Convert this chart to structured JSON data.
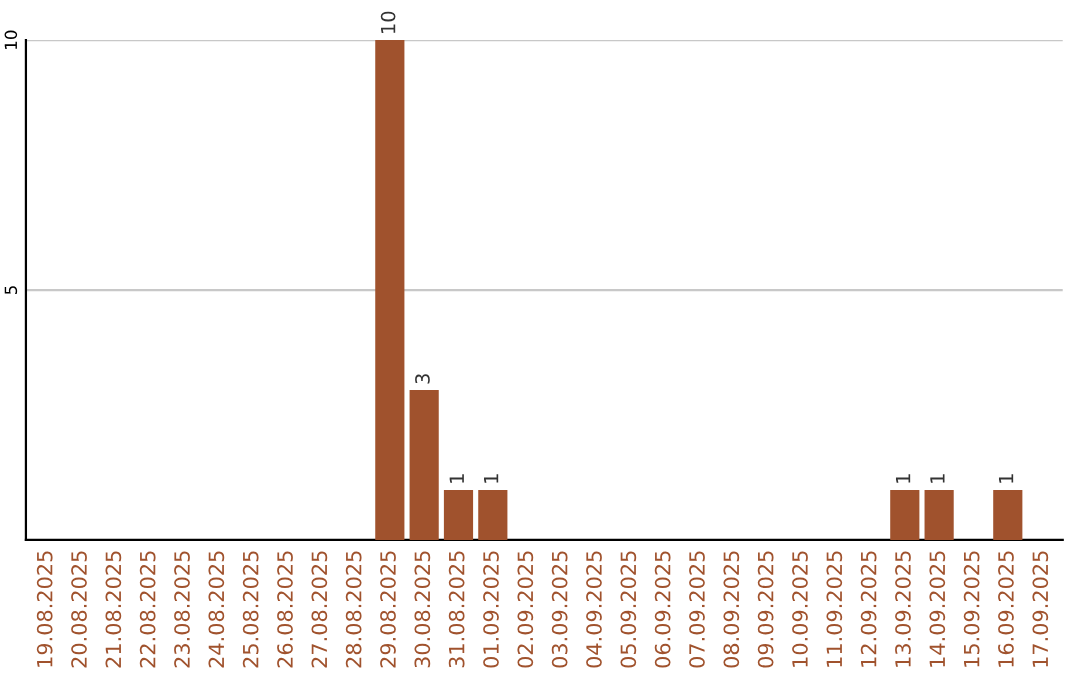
{
  "chart_data": {
    "type": "bar",
    "categories": [
      "19.08.2025",
      "20.08.2025",
      "21.08.2025",
      "22.08.2025",
      "23.08.2025",
      "24.08.2025",
      "25.08.2025",
      "26.08.2025",
      "27.08.2025",
      "28.08.2025",
      "29.08.2025",
      "30.08.2025",
      "31.08.2025",
      "01.09.2025",
      "02.09.2025",
      "03.09.2025",
      "04.09.2025",
      "05.09.2025",
      "06.09.2025",
      "07.09.2025",
      "08.09.2025",
      "09.09.2025",
      "10.09.2025",
      "11.09.2025",
      "12.09.2025",
      "13.09.2025",
      "14.09.2025",
      "15.09.2025",
      "16.09.2025",
      "17.09.2025"
    ],
    "values": [
      0,
      0,
      0,
      0,
      0,
      0,
      0,
      0,
      0,
      0,
      10,
      3,
      1,
      1,
      0,
      0,
      0,
      0,
      0,
      0,
      0,
      0,
      0,
      0,
      0,
      1,
      1,
      0,
      1,
      0
    ],
    "value_labels": [
      null,
      null,
      null,
      null,
      null,
      null,
      null,
      null,
      null,
      null,
      "10",
      "3",
      "1",
      "1",
      null,
      null,
      null,
      null,
      null,
      null,
      null,
      null,
      null,
      null,
      null,
      "1",
      "1",
      null,
      "1",
      null
    ],
    "color": "#a0522d",
    "ylim": [
      0,
      10
    ],
    "yticks": [
      5,
      10
    ],
    "grid": "y"
  }
}
